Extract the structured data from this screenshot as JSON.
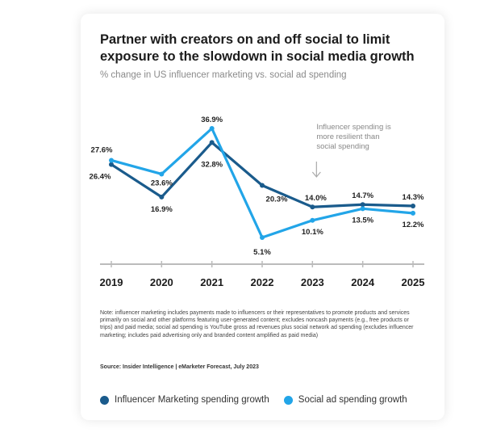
{
  "colors": {
    "influencer": "#1a5b8c",
    "social": "#22a5e8",
    "axis": "#bbbbbb",
    "annotation_text": "#888888"
  },
  "chart_data": {
    "type": "line",
    "title": "Partner with creators on and off social to limit exposure to the slowdown in social media growth",
    "subtitle": "% change in US influencer marketing vs. social ad spending",
    "categories": [
      "2019",
      "2020",
      "2021",
      "2022",
      "2023",
      "2024",
      "2025"
    ],
    "series": [
      {
        "name": "Influencer Marketing spending growth",
        "values": [
          26.4,
          16.9,
          32.8,
          20.3,
          14.0,
          14.7,
          14.3
        ],
        "labels": [
          "26.4%",
          "16.9%",
          "32.8%",
          "20.3%",
          "14.0%",
          "14.7%",
          "14.3%"
        ]
      },
      {
        "name": "Social ad spending growth",
        "values": [
          27.6,
          23.6,
          36.9,
          5.1,
          10.1,
          13.5,
          12.2
        ],
        "labels": [
          "27.6%",
          "23.6%",
          "36.9%",
          "5.1%",
          "10.1%",
          "13.5%",
          "12.2%"
        ]
      }
    ],
    "annotation": {
      "lines": [
        "Influencer spending is",
        "more resilient than",
        "social spending"
      ]
    },
    "ylim": [
      0,
      40
    ],
    "grid": false,
    "legend": "bottom"
  },
  "note": "Note: influencer marketing includes payments made to influencers or their representatives to promote products and services primarily on social and other platforms featuring user-generated content; excludes noncash payments (e.g., free products or trips) and paid media; social ad spending is YouTube gross ad revenues plus social network ad spending (excludes influencer marketing; includes paid advertising only and branded content amplified as paid media)",
  "source": "Source: Insider Intelligence | eMarketer Forecast, July 2023"
}
